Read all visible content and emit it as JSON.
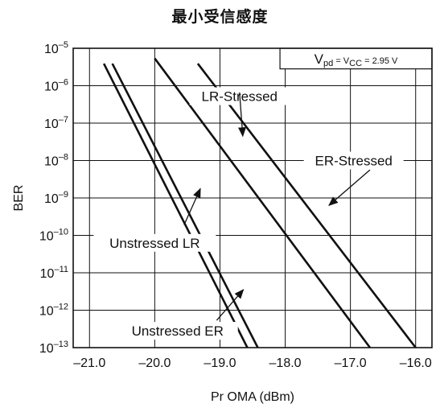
{
  "chart_data": {
    "type": "line",
    "title": "最小受信感度",
    "xlabel": "Pr OMA (dBm)",
    "ylabel": "BER",
    "xlim": [
      -21.25,
      -15.75
    ],
    "ylim_log10": [
      -13,
      -5
    ],
    "y_scale": "log",
    "grid": true,
    "x_ticks": [
      "–21.0",
      "–20.0",
      "–19.0",
      "–18.0",
      "–17.0",
      "–16.0"
    ],
    "y_ticks": [
      {
        "value": -5,
        "mantissa": "10",
        "exp": "–5"
      },
      {
        "value": -6,
        "mantissa": "10",
        "exp": "–6"
      },
      {
        "value": -7,
        "mantissa": "10",
        "exp": "–7"
      },
      {
        "value": -8,
        "mantissa": "10",
        "exp": "–8"
      },
      {
        "value": -9,
        "mantissa": "10",
        "exp": "–9"
      },
      {
        "value": -10,
        "mantissa": "10",
        "exp": "–10"
      },
      {
        "value": -11,
        "mantissa": "10",
        "exp": "–11"
      },
      {
        "value": -12,
        "mantissa": "10",
        "exp": "–12"
      },
      {
        "value": -13,
        "mantissa": "10",
        "exp": "–13"
      }
    ],
    "series": [
      {
        "name": "Unstressed LR",
        "x": [
          -20.78,
          -18.58
        ],
        "log10_ber": [
          -5.41,
          -13.0
        ]
      },
      {
        "name": "Unstressed ER",
        "x": [
          -20.65,
          -18.42
        ],
        "log10_ber": [
          -5.41,
          -13.0
        ]
      },
      {
        "name": "LR-Stressed",
        "x": [
          -20.0,
          -16.7
        ],
        "log10_ber": [
          -5.27,
          -13.0
        ]
      },
      {
        "name": "ER-Stressed",
        "x": [
          -19.34,
          -16.0
        ],
        "log10_ber": [
          -5.41,
          -13.0
        ]
      }
    ],
    "legend_box": {
      "v": "V",
      "pd": "pd",
      "eq1": " = V",
      "cc": "CC",
      "eq2": " = 2.95 V"
    },
    "annotations": [
      {
        "text": "LR-Stressed",
        "tail_x": -18.7,
        "tail_y": -6.18,
        "tip_x": -18.65,
        "tip_y": -7.35
      },
      {
        "text": "ER-Stressed",
        "tail_x": -16.7,
        "tail_y": -8.25,
        "tip_x": -17.33,
        "tip_y": -9.2
      },
      {
        "text": "Unstressed LR",
        "tail_x": -19.55,
        "tail_y": -9.72,
        "tip_x": -19.3,
        "tip_y": -8.75
      },
      {
        "text": "Unstressed ER",
        "tail_x": -19.05,
        "tail_y": -12.27,
        "tip_x": -18.64,
        "tip_y": -11.45
      }
    ]
  }
}
